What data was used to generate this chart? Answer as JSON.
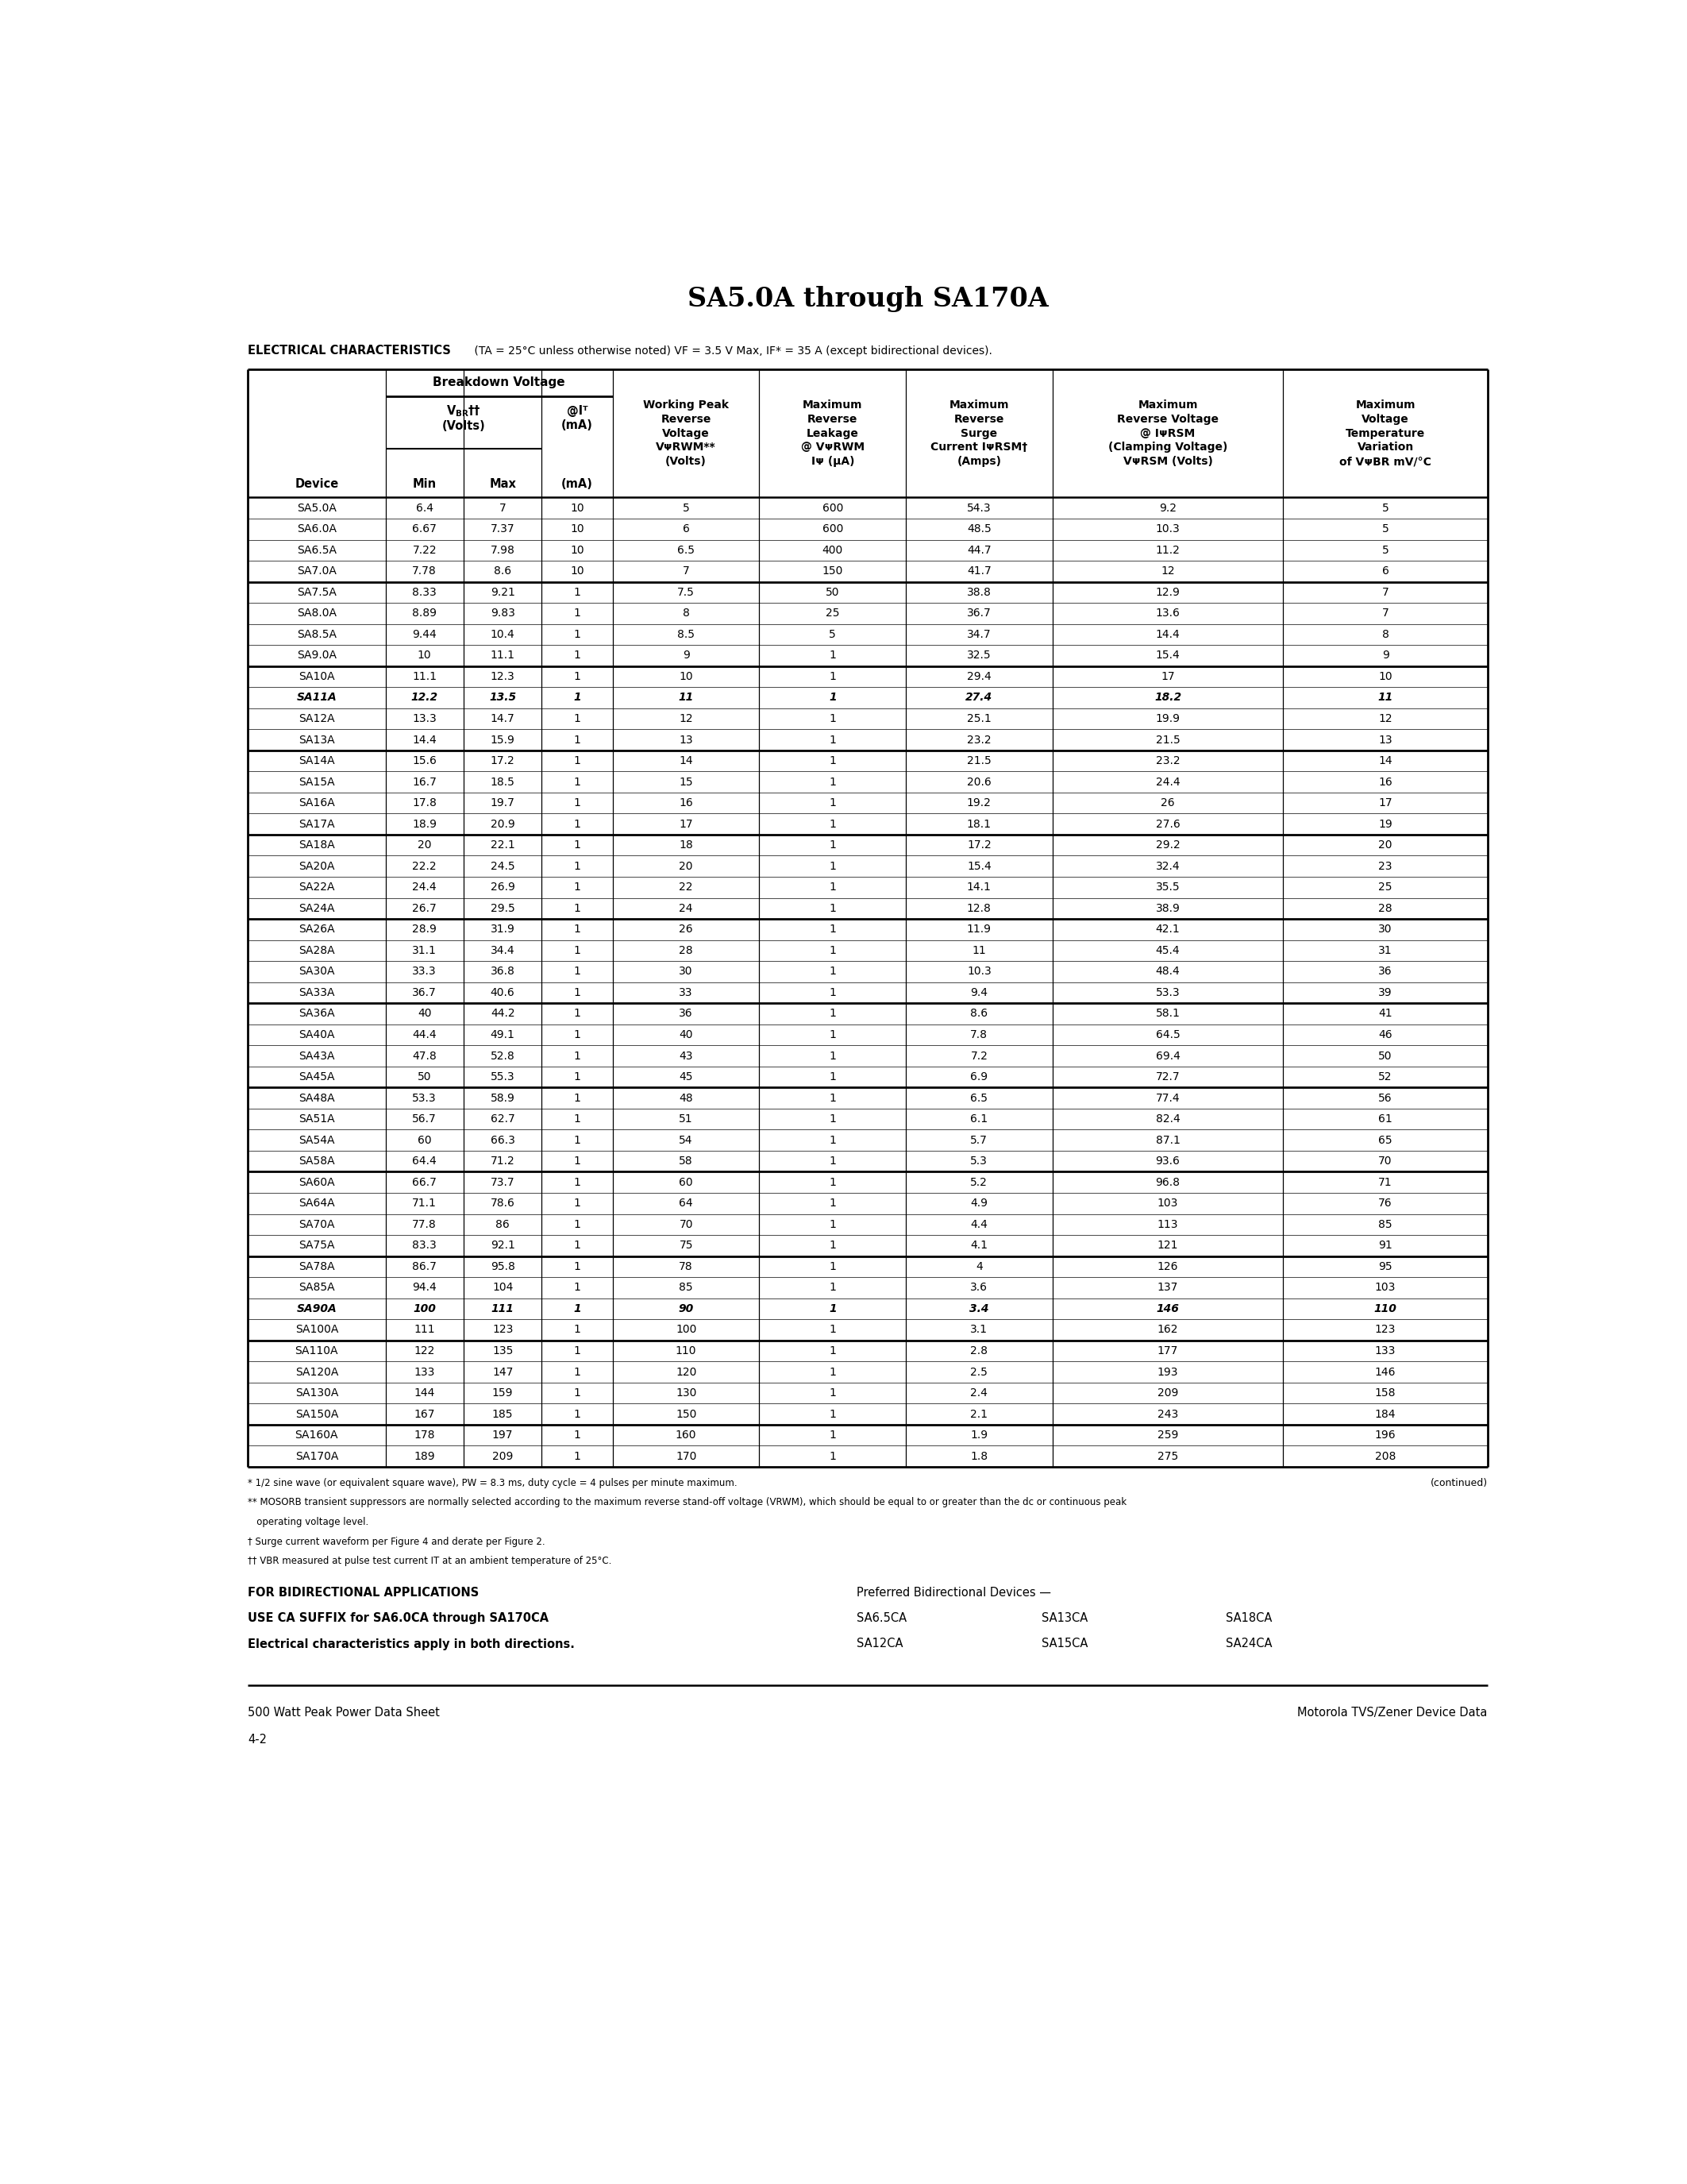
{
  "title": "SA5.0A through SA170A",
  "ec_label": "ELECTRICAL CHARACTERISTICS",
  "ec_conditions": " (TA = 25°C unless otherwise noted) VF = 3.5 V Max, IF* = 35 A (except bidirectional devices).",
  "table_data": [
    [
      "SA5.0A",
      "6.4",
      "7",
      "10",
      "5",
      "600",
      "54.3",
      "9.2",
      "5",
      false
    ],
    [
      "SA6.0A",
      "6.67",
      "7.37",
      "10",
      "6",
      "600",
      "48.5",
      "10.3",
      "5",
      false
    ],
    [
      "SA6.5A",
      "7.22",
      "7.98",
      "10",
      "6.5",
      "400",
      "44.7",
      "11.2",
      "5",
      false
    ],
    [
      "SA7.0A",
      "7.78",
      "8.6",
      "10",
      "7",
      "150",
      "41.7",
      "12",
      "6",
      false
    ],
    [
      "SA7.5A",
      "8.33",
      "9.21",
      "1",
      "7.5",
      "50",
      "38.8",
      "12.9",
      "7",
      false
    ],
    [
      "SA8.0A",
      "8.89",
      "9.83",
      "1",
      "8",
      "25",
      "36.7",
      "13.6",
      "7",
      false
    ],
    [
      "SA8.5A",
      "9.44",
      "10.4",
      "1",
      "8.5",
      "5",
      "34.7",
      "14.4",
      "8",
      false
    ],
    [
      "SA9.0A",
      "10",
      "11.1",
      "1",
      "9",
      "1",
      "32.5",
      "15.4",
      "9",
      false
    ],
    [
      "SA10A",
      "11.1",
      "12.3",
      "1",
      "10",
      "1",
      "29.4",
      "17",
      "10",
      false
    ],
    [
      "SA11A",
      "12.2",
      "13.5",
      "1",
      "11",
      "1",
      "27.4",
      "18.2",
      "11",
      true
    ],
    [
      "SA12A",
      "13.3",
      "14.7",
      "1",
      "12",
      "1",
      "25.1",
      "19.9",
      "12",
      false
    ],
    [
      "SA13A",
      "14.4",
      "15.9",
      "1",
      "13",
      "1",
      "23.2",
      "21.5",
      "13",
      false
    ],
    [
      "SA14A",
      "15.6",
      "17.2",
      "1",
      "14",
      "1",
      "21.5",
      "23.2",
      "14",
      false
    ],
    [
      "SA15A",
      "16.7",
      "18.5",
      "1",
      "15",
      "1",
      "20.6",
      "24.4",
      "16",
      false
    ],
    [
      "SA16A",
      "17.8",
      "19.7",
      "1",
      "16",
      "1",
      "19.2",
      "26",
      "17",
      false
    ],
    [
      "SA17A",
      "18.9",
      "20.9",
      "1",
      "17",
      "1",
      "18.1",
      "27.6",
      "19",
      false
    ],
    [
      "SA18A",
      "20",
      "22.1",
      "1",
      "18",
      "1",
      "17.2",
      "29.2",
      "20",
      false
    ],
    [
      "SA20A",
      "22.2",
      "24.5",
      "1",
      "20",
      "1",
      "15.4",
      "32.4",
      "23",
      false
    ],
    [
      "SA22A",
      "24.4",
      "26.9",
      "1",
      "22",
      "1",
      "14.1",
      "35.5",
      "25",
      false
    ],
    [
      "SA24A",
      "26.7",
      "29.5",
      "1",
      "24",
      "1",
      "12.8",
      "38.9",
      "28",
      false
    ],
    [
      "SA26A",
      "28.9",
      "31.9",
      "1",
      "26",
      "1",
      "11.9",
      "42.1",
      "30",
      false
    ],
    [
      "SA28A",
      "31.1",
      "34.4",
      "1",
      "28",
      "1",
      "11",
      "45.4",
      "31",
      false
    ],
    [
      "SA30A",
      "33.3",
      "36.8",
      "1",
      "30",
      "1",
      "10.3",
      "48.4",
      "36",
      false
    ],
    [
      "SA33A",
      "36.7",
      "40.6",
      "1",
      "33",
      "1",
      "9.4",
      "53.3",
      "39",
      false
    ],
    [
      "SA36A",
      "40",
      "44.2",
      "1",
      "36",
      "1",
      "8.6",
      "58.1",
      "41",
      false
    ],
    [
      "SA40A",
      "44.4",
      "49.1",
      "1",
      "40",
      "1",
      "7.8",
      "64.5",
      "46",
      false
    ],
    [
      "SA43A",
      "47.8",
      "52.8",
      "1",
      "43",
      "1",
      "7.2",
      "69.4",
      "50",
      false
    ],
    [
      "SA45A",
      "50",
      "55.3",
      "1",
      "45",
      "1",
      "6.9",
      "72.7",
      "52",
      false
    ],
    [
      "SA48A",
      "53.3",
      "58.9",
      "1",
      "48",
      "1",
      "6.5",
      "77.4",
      "56",
      false
    ],
    [
      "SA51A",
      "56.7",
      "62.7",
      "1",
      "51",
      "1",
      "6.1",
      "82.4",
      "61",
      false
    ],
    [
      "SA54A",
      "60",
      "66.3",
      "1",
      "54",
      "1",
      "5.7",
      "87.1",
      "65",
      false
    ],
    [
      "SA58A",
      "64.4",
      "71.2",
      "1",
      "58",
      "1",
      "5.3",
      "93.6",
      "70",
      false
    ],
    [
      "SA60A",
      "66.7",
      "73.7",
      "1",
      "60",
      "1",
      "5.2",
      "96.8",
      "71",
      false
    ],
    [
      "SA64A",
      "71.1",
      "78.6",
      "1",
      "64",
      "1",
      "4.9",
      "103",
      "76",
      false
    ],
    [
      "SA70A",
      "77.8",
      "86",
      "1",
      "70",
      "1",
      "4.4",
      "113",
      "85",
      false
    ],
    [
      "SA75A",
      "83.3",
      "92.1",
      "1",
      "75",
      "1",
      "4.1",
      "121",
      "91",
      false
    ],
    [
      "SA78A",
      "86.7",
      "95.8",
      "1",
      "78",
      "1",
      "4",
      "126",
      "95",
      false
    ],
    [
      "SA85A",
      "94.4",
      "104",
      "1",
      "85",
      "1",
      "3.6",
      "137",
      "103",
      false
    ],
    [
      "SA90A",
      "100",
      "111",
      "1",
      "90",
      "1",
      "3.4",
      "146",
      "110",
      true
    ],
    [
      "SA100A",
      "111",
      "123",
      "1",
      "100",
      "1",
      "3.1",
      "162",
      "123",
      false
    ],
    [
      "SA110A",
      "122",
      "135",
      "1",
      "110",
      "1",
      "2.8",
      "177",
      "133",
      false
    ],
    [
      "SA120A",
      "133",
      "147",
      "1",
      "120",
      "1",
      "2.5",
      "193",
      "146",
      false
    ],
    [
      "SA130A",
      "144",
      "159",
      "1",
      "130",
      "1",
      "2.4",
      "209",
      "158",
      false
    ],
    [
      "SA150A",
      "167",
      "185",
      "1",
      "150",
      "1",
      "2.1",
      "243",
      "184",
      false
    ],
    [
      "SA160A",
      "178",
      "197",
      "1",
      "160",
      "1",
      "1.9",
      "259",
      "196",
      false
    ],
    [
      "SA170A",
      "189",
      "209",
      "1",
      "170",
      "1",
      "1.8",
      "275",
      "208",
      false
    ]
  ],
  "group_end_rows": [
    3,
    7,
    11,
    15,
    19,
    23,
    27,
    31,
    35,
    39,
    43
  ],
  "footnotes": [
    "* 1/2 sine wave (or equivalent square wave), PW = 8.3 ms, duty cycle = 4 pulses per minute maximum.",
    "** MOSORB transient suppressors are normally selected according to the maximum reverse stand-off voltage (VRWM), which should be equal to or greater than the dc or continuous peak",
    "   operating voltage level.",
    "† Surge current waveform per Figure 4 and derate per Figure 2.",
    "†† VBR measured at pulse test current IT at an ambient temperature of 25°C."
  ],
  "continued_text": "(continued)",
  "bi_line1": "FOR BIDIRECTIONAL APPLICATIONS",
  "bi_line2": "USE CA SUFFIX for SA6.0CA through SA170CA",
  "bi_line3": "Electrical characteristics apply in both directions.",
  "bi_pref_label": "Preferred Bidirectional Devices —",
  "bi_devices_row1": [
    "SA6.5CA",
    "SA13CA",
    "SA18CA"
  ],
  "bi_devices_row2": [
    "SA12CA",
    "SA15CA",
    "SA24CA"
  ],
  "footer_left1": "500 Watt Peak Power Data Sheet",
  "footer_left2": "4-2",
  "footer_right": "Motorola TVS/Zener Device Data"
}
